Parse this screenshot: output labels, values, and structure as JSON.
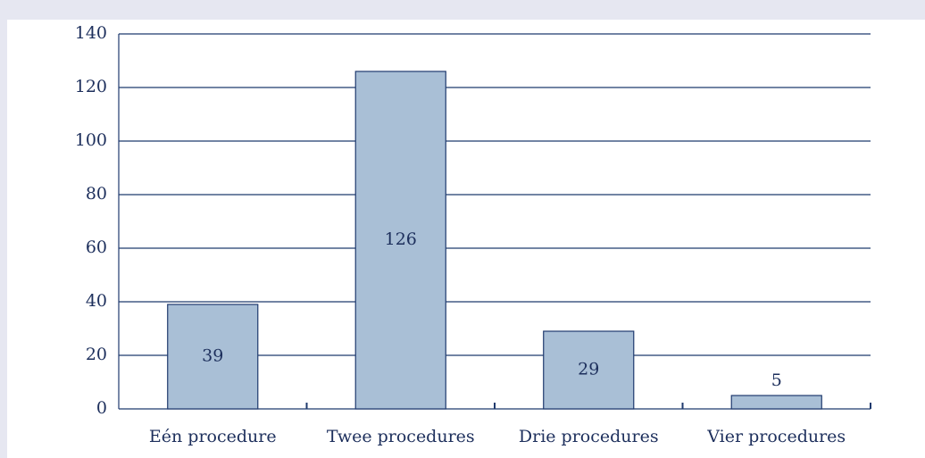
{
  "chart_data": {
    "type": "bar",
    "categories": [
      "Eén procedure",
      "Twee procedures",
      "Drie procedures",
      "Vier procedures"
    ],
    "values": [
      39,
      126,
      29,
      5
    ],
    "color": "#a9bfd6",
    "ylim": [
      0,
      140
    ],
    "yticks": [
      0,
      20,
      40,
      60,
      80,
      100,
      120,
      140
    ],
    "grid": true
  }
}
